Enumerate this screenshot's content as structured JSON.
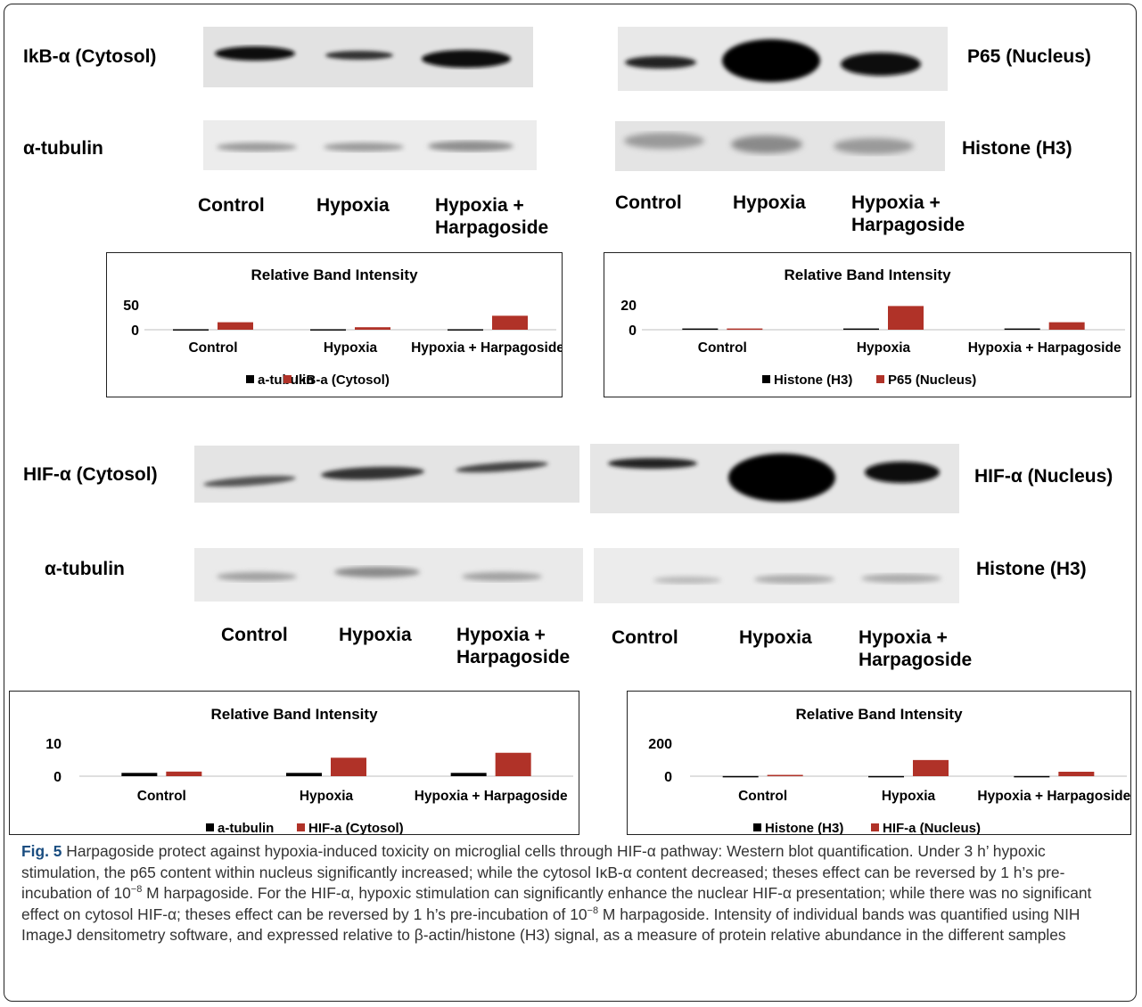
{
  "figure": {
    "panels": [
      {
        "id": "ikb",
        "target_label": "IkB-α (Cytosol)",
        "control_label": "α-tubulin",
        "lanes": [
          "Control",
          "Hypoxia",
          "Hypoxia +\nHarpagoside"
        ]
      },
      {
        "id": "p65",
        "target_label": "P65 (Nucleus)",
        "control_label": "Histone (H3)",
        "lanes": [
          "Control",
          "Hypoxia",
          "Hypoxia +\nHarpagoside"
        ]
      },
      {
        "id": "hif_cyto",
        "target_label": "HIF-α (Cytosol)",
        "control_label": "α-tubulin",
        "lanes": [
          "Control",
          "Hypoxia",
          "Hypoxia +\nHarpagoside"
        ]
      },
      {
        "id": "hif_nuc",
        "target_label": "HIF-α (Nucleus)",
        "control_label": "Histone (H3)",
        "lanes": [
          "Control",
          "Hypoxia",
          "Hypoxia +\nHarpagoside"
        ]
      }
    ]
  },
  "chart_data": [
    {
      "type": "bar",
      "title": "Relative Band Intensity",
      "categories": [
        "Control",
        "Hypoxia",
        "Hypoxia + Harpagoside"
      ],
      "series": [
        {
          "name": "a-tubulin",
          "values": [
            1,
            1,
            1
          ],
          "color": "#000000"
        },
        {
          "name": "IkB-a (Cytosol)",
          "values": [
            15,
            5,
            28
          ],
          "color": "#b03228"
        }
      ],
      "yticks": [
        "0",
        "50"
      ],
      "ylim": [
        0,
        50
      ],
      "legend": "bottom"
    },
    {
      "type": "bar",
      "title": "Relative Band Intensity",
      "categories": [
        "Control",
        "Hypoxia",
        "Hypoxia + Harpagoside"
      ],
      "series": [
        {
          "name": "Histone (H3)",
          "values": [
            1,
            1,
            1
          ],
          "color": "#000000"
        },
        {
          "name": "P65 (Nucleus)",
          "values": [
            1,
            19,
            6
          ],
          "color": "#b03228"
        }
      ],
      "yticks": [
        "0",
        "20"
      ],
      "ylim": [
        0,
        20
      ],
      "legend": "bottom"
    },
    {
      "type": "bar",
      "title": "Relative Band Intensity",
      "categories": [
        "Control",
        "Hypoxia",
        "Hypoxia + Harpagoside"
      ],
      "series": [
        {
          "name": "a-tubulin",
          "values": [
            1,
            1,
            1
          ],
          "color": "#000000"
        },
        {
          "name": "HIF-a (Cytosol)",
          "values": [
            1.4,
            5.6,
            7.1
          ],
          "color": "#b03228"
        }
      ],
      "yticks": [
        "0",
        "10"
      ],
      "ylim": [
        0,
        10
      ],
      "legend": "bottom"
    },
    {
      "type": "bar",
      "title": "Relative Band Intensity",
      "categories": [
        "Control",
        "Hypoxia",
        "Hypoxia + Harpagoside"
      ],
      "series": [
        {
          "name": "Histone (H3)",
          "values": [
            1,
            1,
            1
          ],
          "color": "#000000"
        },
        {
          "name": "HIF-a (Nucleus)",
          "values": [
            8,
            98,
            27
          ],
          "color": "#b03228"
        }
      ],
      "yticks": [
        "0",
        "200"
      ],
      "ylim": [
        0,
        200
      ],
      "legend": "bottom"
    }
  ],
  "caption": {
    "label": "Fig. 5",
    "text_1": " Harpagoside protect against hypoxia-induced toxicity on microglial cells through HIF-α pathway: Western blot quantification. Under 3 h’ hypoxic stimulation, the p65 content within nucleus significantly increased; while the cytosol IκB-α content decreased; theses effect can be reversed by 1 h’s pre-incubation of 10",
    "sup_1": "−8",
    "text_2": " M harpagoside. For the HIF-α, hypoxic stimulation can significantly enhance the nuclear HIF-α presentation; while there was no significant effect on cytosol HIF-α; theses effect can be reversed by 1 h’s pre-incubation of 10",
    "sup_2": "−8",
    "text_3": " M harpagoside. Intensity of individual bands was quantified using NIH ImageJ densitometry software, and expressed relative to β-actin/histone (H3) signal, as a measure of protein relative abundance in the different samples"
  }
}
